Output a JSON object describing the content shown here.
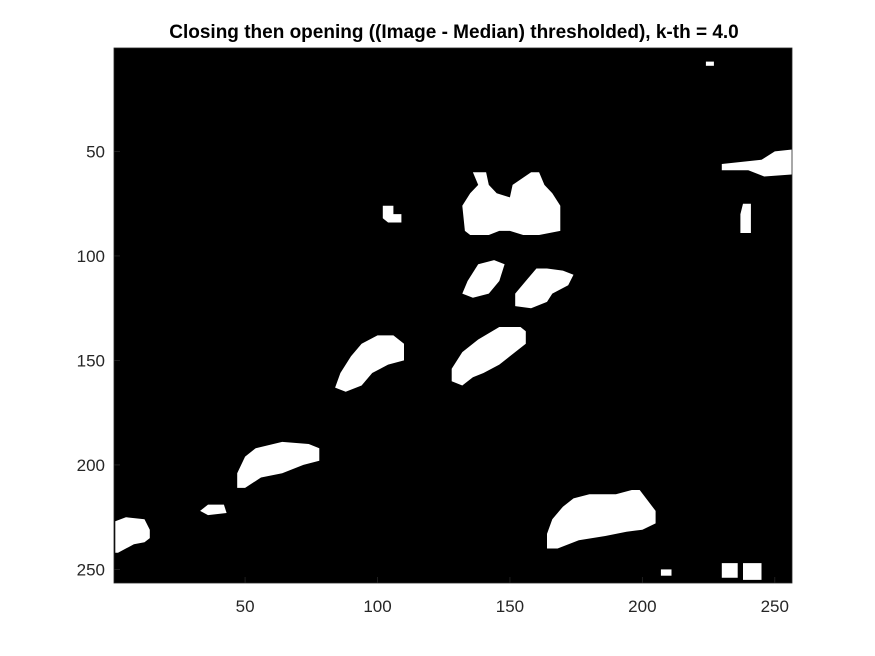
{
  "chart_data": {
    "type": "heatmap",
    "title": "Closing then opening ((Image - Median) thresholded), k-th = 4.0",
    "xlabel": "",
    "ylabel": "",
    "xlim": [
      0.5,
      256.5
    ],
    "ylim": [
      0.5,
      256.5
    ],
    "y_direction": "reversed",
    "colormap": {
      "0": "#000000",
      "1": "#ffffff"
    },
    "background_value": 0,
    "x_ticks": [
      50,
      100,
      150,
      200,
      250
    ],
    "y_ticks": [
      50,
      100,
      150,
      200,
      250
    ],
    "grid": false,
    "blobs": [
      {
        "value": 1,
        "polygon": [
          [
            230,
            56
          ],
          [
            245,
            54
          ],
          [
            250,
            50
          ],
          [
            257,
            49
          ],
          [
            257,
            61
          ],
          [
            246,
            62
          ],
          [
            240,
            59
          ],
          [
            230,
            59
          ]
        ]
      },
      {
        "value": 1,
        "polygon": [
          [
            136,
            60
          ],
          [
            141,
            60
          ],
          [
            142,
            66
          ],
          [
            145,
            70
          ],
          [
            150,
            72
          ],
          [
            151,
            66
          ],
          [
            158,
            60
          ],
          [
            161,
            60
          ],
          [
            163,
            66
          ],
          [
            166,
            70
          ],
          [
            169,
            76
          ],
          [
            169,
            88
          ],
          [
            161,
            90
          ],
          [
            155,
            90
          ],
          [
            150,
            88
          ],
          [
            146,
            88
          ],
          [
            142,
            90
          ],
          [
            135,
            90
          ],
          [
            133,
            88
          ],
          [
            132,
            76
          ],
          [
            135,
            70
          ],
          [
            138,
            66
          ]
        ]
      },
      {
        "value": 1,
        "polygon": [
          [
            102,
            76
          ],
          [
            106,
            76
          ],
          [
            106,
            80
          ],
          [
            109,
            80
          ],
          [
            109,
            84
          ],
          [
            104,
            84
          ],
          [
            102,
            82
          ]
        ]
      },
      {
        "value": 1,
        "polygon": [
          [
            238,
            75
          ],
          [
            241,
            75
          ],
          [
            241,
            89
          ],
          [
            237,
            89
          ],
          [
            237,
            80
          ]
        ]
      },
      {
        "value": 1,
        "polygon": [
          [
            138,
            104
          ],
          [
            144,
            102
          ],
          [
            148,
            104
          ],
          [
            146,
            112
          ],
          [
            142,
            118
          ],
          [
            136,
            120
          ],
          [
            132,
            118
          ],
          [
            134,
            112
          ]
        ]
      },
      {
        "value": 1,
        "polygon": [
          [
            164,
            106
          ],
          [
            170,
            107
          ],
          [
            174,
            109
          ],
          [
            172,
            114
          ],
          [
            166,
            118
          ],
          [
            164,
            122
          ],
          [
            158,
            125
          ],
          [
            152,
            124
          ],
          [
            152,
            118
          ],
          [
            156,
            112
          ],
          [
            160,
            106
          ]
        ]
      },
      {
        "value": 1,
        "polygon": [
          [
            100,
            138
          ],
          [
            106,
            138
          ],
          [
            110,
            142
          ],
          [
            110,
            150
          ],
          [
            104,
            152
          ],
          [
            98,
            156
          ],
          [
            94,
            162
          ],
          [
            88,
            165
          ],
          [
            84,
            163
          ],
          [
            86,
            156
          ],
          [
            90,
            148
          ],
          [
            94,
            142
          ]
        ]
      },
      {
        "value": 1,
        "polygon": [
          [
            146,
            134
          ],
          [
            154,
            134
          ],
          [
            156,
            136
          ],
          [
            156,
            142
          ],
          [
            150,
            148
          ],
          [
            146,
            152
          ],
          [
            140,
            156
          ],
          [
            136,
            158
          ],
          [
            132,
            162
          ],
          [
            128,
            160
          ],
          [
            128,
            154
          ],
          [
            132,
            146
          ],
          [
            138,
            140
          ]
        ]
      },
      {
        "value": 1,
        "polygon": [
          [
            64,
            189
          ],
          [
            74,
            190
          ],
          [
            78,
            192
          ],
          [
            78,
            198
          ],
          [
            72,
            200
          ],
          [
            64,
            204
          ],
          [
            56,
            206
          ],
          [
            50,
            211
          ],
          [
            47,
            211
          ],
          [
            47,
            204
          ],
          [
            50,
            196
          ],
          [
            54,
            192
          ]
        ]
      },
      {
        "value": 1,
        "polygon": [
          [
            36,
            219
          ],
          [
            42,
            219
          ],
          [
            43,
            223
          ],
          [
            36,
            224
          ],
          [
            33,
            222
          ]
        ]
      },
      {
        "value": 1,
        "polygon": [
          [
            1,
            227
          ],
          [
            5,
            225
          ],
          [
            12,
            226
          ],
          [
            14,
            231
          ],
          [
            14,
            235
          ],
          [
            12,
            237
          ],
          [
            8,
            238
          ],
          [
            2,
            242
          ],
          [
            1,
            242
          ]
        ]
      },
      {
        "value": 1,
        "polygon": [
          [
            180,
            214
          ],
          [
            190,
            214
          ],
          [
            196,
            212
          ],
          [
            199,
            212
          ],
          [
            202,
            217
          ],
          [
            205,
            222
          ],
          [
            205,
            228
          ],
          [
            200,
            231
          ],
          [
            194,
            232
          ],
          [
            186,
            234
          ],
          [
            176,
            236
          ],
          [
            168,
            240
          ],
          [
            164,
            240
          ],
          [
            164,
            233
          ],
          [
            166,
            226
          ],
          [
            170,
            220
          ],
          [
            174,
            216
          ]
        ]
      },
      {
        "value": 1,
        "polygon": [
          [
            207,
            250
          ],
          [
            211,
            250
          ],
          [
            211,
            253
          ],
          [
            207,
            253
          ]
        ]
      },
      {
        "value": 1,
        "polygon": [
          [
            230,
            247
          ],
          [
            236,
            247
          ],
          [
            236,
            254
          ],
          [
            230,
            254
          ]
        ]
      },
      {
        "value": 1,
        "polygon": [
          [
            238,
            247
          ],
          [
            245,
            247
          ],
          [
            245,
            255
          ],
          [
            238,
            255
          ]
        ]
      },
      {
        "value": 1,
        "polygon": [
          [
            224,
            7
          ],
          [
            227,
            7
          ],
          [
            227,
            9
          ],
          [
            224,
            9
          ]
        ]
      }
    ]
  }
}
